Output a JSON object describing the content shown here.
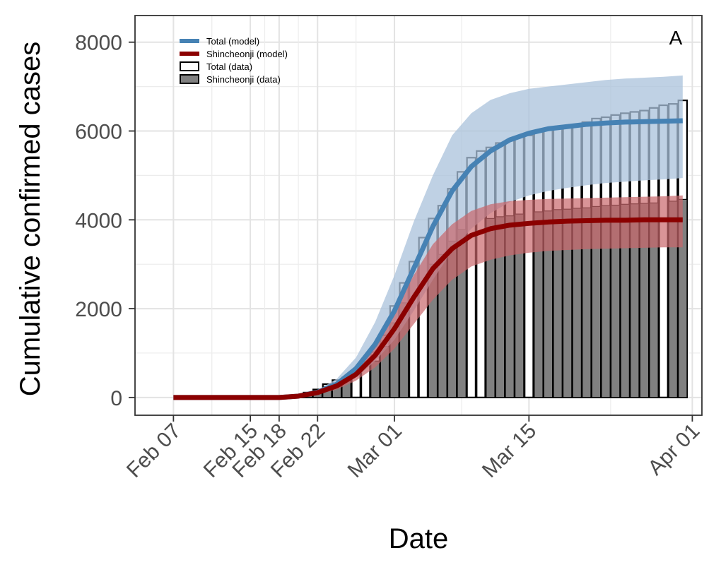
{
  "chart_data": {
    "type": "bar",
    "xlabel": "Date",
    "ylabel": "Cumulative confirmed cases",
    "panel_label": "A",
    "xlim": [
      "2020-02-03",
      "2020-04-02"
    ],
    "ylim": [
      -400,
      8600
    ],
    "y_ticks": [
      0,
      2000,
      4000,
      6000,
      8000
    ],
    "x_ticks": [
      {
        "date": "2020-02-07",
        "label": "Feb 07"
      },
      {
        "date": "2020-02-15",
        "label": "Feb 15"
      },
      {
        "date": "2020-02-18",
        "label": "Feb 18"
      },
      {
        "date": "2020-02-22",
        "label": "Feb 22"
      },
      {
        "date": "2020-03-01",
        "label": "Mar 01"
      },
      {
        "date": "2020-03-15",
        "label": "Mar 15"
      },
      {
        "date": "2020-04-01",
        "label": "Apr 01"
      }
    ],
    "grid": true,
    "legend_position": "top-left",
    "legend": [
      {
        "label": "Total (model)",
        "kind": "line",
        "color": "#4682B4"
      },
      {
        "label": "Shincheonji (model)",
        "kind": "line",
        "color": "#8B0000"
      },
      {
        "label": "Total (data)",
        "kind": "bar",
        "fill": "#ffffff",
        "stroke": "#000000"
      },
      {
        "label": "Shincheonji (data)",
        "kind": "bar",
        "fill": "#808080",
        "stroke": "#000000"
      }
    ],
    "colors": {
      "total_model": "#4682B4",
      "total_band": "#A9C2DB",
      "shincheonji_model": "#8B0000",
      "shincheonji_band": "#C9676B",
      "total_bar_fill": "#ffffff",
      "shincheonji_bar_fill": "#808080",
      "bar_stroke": "#000000"
    },
    "series": [
      {
        "name": "Total (data)",
        "x": [
          "2020-02-18",
          "2020-02-19",
          "2020-02-20",
          "2020-02-21",
          "2020-02-22",
          "2020-02-23",
          "2020-02-24",
          "2020-02-25",
          "2020-02-26",
          "2020-02-27",
          "2020-02-28",
          "2020-02-29",
          "2020-03-01",
          "2020-03-02",
          "2020-03-03",
          "2020-03-04",
          "2020-03-05",
          "2020-03-06",
          "2020-03-07",
          "2020-03-08",
          "2020-03-09",
          "2020-03-10",
          "2020-03-11",
          "2020-03-12",
          "2020-03-13",
          "2020-03-14",
          "2020-03-15",
          "2020-03-16",
          "2020-03-17",
          "2020-03-18",
          "2020-03-19",
          "2020-03-20",
          "2020-03-21",
          "2020-03-22",
          "2020-03-23",
          "2020-03-24",
          "2020-03-25",
          "2020-03-26",
          "2020-03-27",
          "2020-03-28",
          "2020-03-29",
          "2020-03-30",
          "2020-03-31"
        ],
        "values": [
          0,
          20,
          60,
          110,
          180,
          300,
          390,
          450,
          540,
          800,
          1020,
          1400,
          2060,
          2580,
          3060,
          3600,
          4030,
          4320,
          4700,
          5080,
          5400,
          5550,
          5630,
          5730,
          5780,
          5860,
          5900,
          5990,
          6020,
          6060,
          6090,
          6140,
          6200,
          6280,
          6310,
          6360,
          6400,
          6430,
          6460,
          6520,
          6580,
          6610,
          6690
        ]
      },
      {
        "name": "Shincheonji (data)",
        "x": [
          "2020-02-18",
          "2020-02-19",
          "2020-02-20",
          "2020-02-21",
          "2020-02-22",
          "2020-02-23",
          "2020-02-24",
          "2020-02-25",
          "2020-02-26",
          "2020-02-27",
          "2020-02-28",
          "2020-02-29",
          "2020-03-01",
          "2020-03-02",
          "2020-03-03",
          "2020-03-04",
          "2020-03-05",
          "2020-03-06",
          "2020-03-07",
          "2020-03-08",
          "2020-03-09",
          "2020-03-10",
          "2020-03-11",
          "2020-03-12",
          "2020-03-13",
          "2020-03-14",
          "2020-03-15",
          "2020-03-16",
          "2020-03-17",
          "2020-03-18",
          "2020-03-19",
          "2020-03-20",
          "2020-03-21",
          "2020-03-22",
          "2020-03-23",
          "2020-03-24",
          "2020-03-25",
          "2020-03-26",
          "2020-03-27",
          "2020-03-28",
          "2020-03-29",
          "2020-03-30",
          "2020-03-31"
        ],
        "values": [
          0,
          20,
          50,
          90,
          160,
          250,
          330,
          380,
          0,
          0,
          820,
          1150,
          1680,
          2130,
          0,
          0,
          3000,
          3220,
          3520,
          3780,
          0,
          0,
          4030,
          4070,
          4090,
          4130,
          0,
          4180,
          4200,
          4230,
          4240,
          4260,
          4270,
          4300,
          4320,
          4330,
          4350,
          4360,
          4370,
          4380,
          0,
          4420,
          4460
        ]
      },
      {
        "name": "Total (model)",
        "x": [
          "2020-02-07",
          "2020-02-10",
          "2020-02-13",
          "2020-02-16",
          "2020-02-18",
          "2020-02-20",
          "2020-02-22",
          "2020-02-24",
          "2020-02-26",
          "2020-02-28",
          "2020-03-01",
          "2020-03-03",
          "2020-03-05",
          "2020-03-07",
          "2020-03-09",
          "2020-03-11",
          "2020-03-13",
          "2020-03-15",
          "2020-03-17",
          "2020-03-19",
          "2020-03-21",
          "2020-03-23",
          "2020-03-25",
          "2020-03-27",
          "2020-03-29",
          "2020-03-31"
        ],
        "values": [
          0,
          0,
          0,
          0,
          0,
          30,
          120,
          300,
          650,
          1200,
          1950,
          2900,
          3850,
          4650,
          5200,
          5550,
          5800,
          5950,
          6050,
          6100,
          6150,
          6180,
          6200,
          6210,
          6220,
          6230
        ],
        "lower": [
          0,
          0,
          0,
          0,
          0,
          20,
          80,
          210,
          450,
          820,
          1300,
          1950,
          2650,
          3300,
          3800,
          4150,
          4400,
          4550,
          4650,
          4720,
          4780,
          4830,
          4860,
          4890,
          4910,
          4940
        ],
        "upper": [
          0,
          0,
          0,
          0,
          0,
          40,
          160,
          420,
          900,
          1700,
          2750,
          3950,
          5000,
          5900,
          6400,
          6700,
          6850,
          6950,
          7000,
          7050,
          7100,
          7150,
          7180,
          7200,
          7220,
          7250
        ]
      },
      {
        "name": "Shincheonji (model)",
        "x": [
          "2020-02-07",
          "2020-02-10",
          "2020-02-13",
          "2020-02-16",
          "2020-02-18",
          "2020-02-20",
          "2020-02-22",
          "2020-02-24",
          "2020-02-26",
          "2020-02-28",
          "2020-03-01",
          "2020-03-03",
          "2020-03-05",
          "2020-03-07",
          "2020-03-09",
          "2020-03-11",
          "2020-03-13",
          "2020-03-15",
          "2020-03-17",
          "2020-03-19",
          "2020-03-21",
          "2020-03-23",
          "2020-03-25",
          "2020-03-27",
          "2020-03-29",
          "2020-03-31"
        ],
        "values": [
          0,
          0,
          0,
          0,
          0,
          30,
          110,
          260,
          520,
          950,
          1550,
          2250,
          2900,
          3350,
          3650,
          3800,
          3880,
          3920,
          3950,
          3970,
          3980,
          3990,
          3990,
          4000,
          4000,
          4000
        ],
        "lower": [
          0,
          0,
          0,
          0,
          0,
          20,
          70,
          180,
          380,
          680,
          1100,
          1650,
          2200,
          2650,
          2950,
          3100,
          3200,
          3260,
          3300,
          3320,
          3340,
          3350,
          3360,
          3370,
          3380,
          3380
        ],
        "upper": [
          0,
          0,
          0,
          0,
          0,
          40,
          150,
          340,
          680,
          1250,
          1950,
          2750,
          3450,
          3900,
          4200,
          4350,
          4420,
          4450,
          4470,
          4480,
          4490,
          4500,
          4510,
          4520,
          4530,
          4550
        ]
      }
    ]
  }
}
